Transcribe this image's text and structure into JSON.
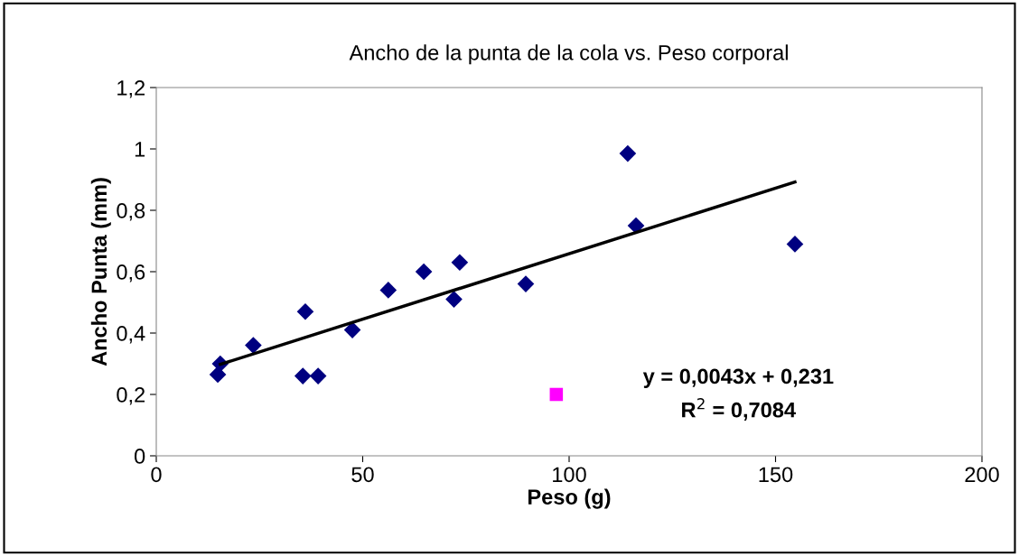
{
  "chart_data": {
    "type": "scatter",
    "title": "Ancho de la punta de la cola vs. Peso corporal",
    "xlabel": "Peso (g)",
    "ylabel": "Ancho Punta (mm)",
    "series": [
      {
        "color": "#000080",
        "marker": "diamond",
        "x": [
          14.9,
          15.5,
          23.5,
          36.1,
          35.5,
          39.2,
          47.5,
          56.2,
          64.8,
          73.5,
          72.1,
          89.5,
          114.2,
          116.2,
          154.7
        ],
        "values": [
          0.265,
          0.3,
          0.36,
          0.47,
          0.26,
          0.26,
          0.41,
          0.54,
          0.6,
          0.63,
          0.51,
          0.56,
          0.985,
          0.75,
          0.69
        ]
      },
      {
        "color": "#ff00ff",
        "marker": "square",
        "x": [
          96.9
        ],
        "values": [
          0.2
        ]
      },
      {
        "type": "line",
        "color": "#000000",
        "marker": "none",
        "x": [
          15.5,
          154.7
        ],
        "values": [
          0.298,
          0.892
        ]
      }
    ],
    "annotations": [
      "y = 0,0043x + 0,231\nR$^{2}$ = 0,7084"
    ],
    "xlim": [
      0,
      200
    ],
    "xticks": [
      0,
      50,
      100,
      150,
      200
    ],
    "ylim": [
      0,
      1.2
    ],
    "yticks": [
      {
        "value": 0,
        "label": "0"
      },
      {
        "value": 0.2,
        "label": "0,2"
      },
      {
        "value": 0.4,
        "label": "0,4"
      },
      {
        "value": 0.6,
        "label": "0,6"
      },
      {
        "value": 0.8,
        "label": "0,8"
      },
      {
        "value": 1,
        "label": "1"
      },
      {
        "value": 1.2,
        "label": "1,2"
      }
    ],
    "grid": false
  }
}
